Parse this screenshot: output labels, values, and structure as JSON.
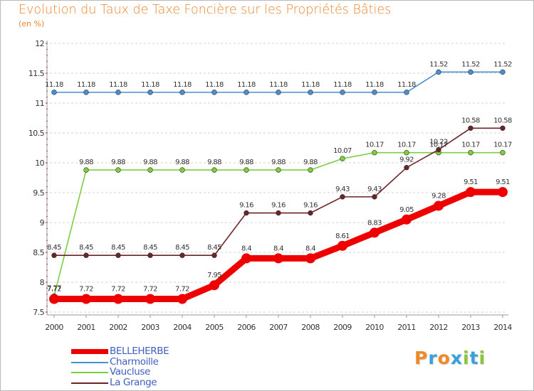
{
  "title": "Evolution du Taux de Taxe Foncière sur les Propriétés Bâties",
  "subtitle": "(en %)",
  "logo": {
    "letters": [
      "P",
      "r",
      "o",
      "x",
      "i",
      "t",
      "i"
    ],
    "colors": [
      "#f08a24",
      "#39a0dc",
      "#f08a24",
      "#39a0dc",
      "#8cc63f",
      "#39a0dc",
      "#8cc63f"
    ]
  },
  "chart_data": {
    "type": "line",
    "x": [
      "2000",
      "2001",
      "2002",
      "2003",
      "2004",
      "2005",
      "2006",
      "2007",
      "2008",
      "2009",
      "2010",
      "2011",
      "2012",
      "2013",
      "2014"
    ],
    "ylim": [
      7.5,
      12
    ],
    "yticks": [
      "7.5",
      "8",
      "8.5",
      "9",
      "9.5",
      "10",
      "10.5",
      "11",
      "11.5",
      "12"
    ],
    "grid": "horizontal dashed",
    "legend_position": "bottom-left",
    "series": [
      {
        "name": "Charmoille",
        "color": "#4a8fd0",
        "values": [
          11.18,
          11.18,
          11.18,
          11.18,
          11.18,
          11.18,
          11.18,
          11.18,
          11.18,
          11.18,
          11.18,
          11.18,
          11.52,
          11.52,
          11.52
        ],
        "labels": [
          "11.18",
          "11.18",
          "11.18",
          "11.18",
          "11.18",
          "11.18",
          "11.18",
          "11.18",
          "11.18",
          "11.18",
          "11.18",
          "11.18",
          "11.52",
          "11.52",
          "11.52"
        ]
      },
      {
        "name": "Vaucluse",
        "color": "#7bcf3f",
        "values": [
          7.77,
          9.88,
          9.88,
          9.88,
          9.88,
          9.88,
          9.88,
          9.88,
          9.88,
          10.07,
          10.17,
          10.17,
          10.17,
          10.17,
          10.17
        ],
        "labels": [
          "7.77",
          "9.88",
          "9.88",
          "9.88",
          "9.88",
          "9.88",
          "9.88",
          "9.88",
          "9.88",
          "10.07",
          "10.17",
          "10.17",
          "10.17",
          "10.17",
          "10.17"
        ]
      },
      {
        "name": "La Grange",
        "color": "#6b2425",
        "values": [
          8.45,
          8.45,
          8.45,
          8.45,
          8.45,
          8.45,
          9.16,
          9.16,
          9.16,
          9.43,
          9.43,
          9.92,
          10.22,
          10.58,
          10.58
        ],
        "labels": [
          "8.45",
          "8.45",
          "8.45",
          "8.45",
          "8.45",
          "8.45",
          "9.16",
          "9.16",
          "9.16",
          "9.43",
          "9.43",
          "9.92",
          "10.22",
          "10.58",
          "10.58"
        ]
      },
      {
        "name": "BELLEHERBE",
        "color": "#ee0000",
        "values": [
          7.72,
          7.72,
          7.72,
          7.72,
          7.72,
          7.95,
          8.4,
          8.4,
          8.4,
          8.61,
          8.83,
          9.05,
          9.28,
          9.51,
          9.51
        ],
        "labels": [
          "7.72",
          "7.72",
          "7.72",
          "7.72",
          "7.72",
          "7.95",
          "8.4",
          "8.4",
          "8.4",
          "8.61",
          "8.83",
          "9.05",
          "9.28",
          "9.51",
          "9.51"
        ]
      }
    ]
  },
  "legend": [
    {
      "name": "BELLEHERBE",
      "color": "#ee0000"
    },
    {
      "name": "Charmoille",
      "color": "#4a8fd0"
    },
    {
      "name": "Vaucluse",
      "color": "#7bcf3f"
    },
    {
      "name": "La Grange",
      "color": "#6b2425"
    }
  ]
}
